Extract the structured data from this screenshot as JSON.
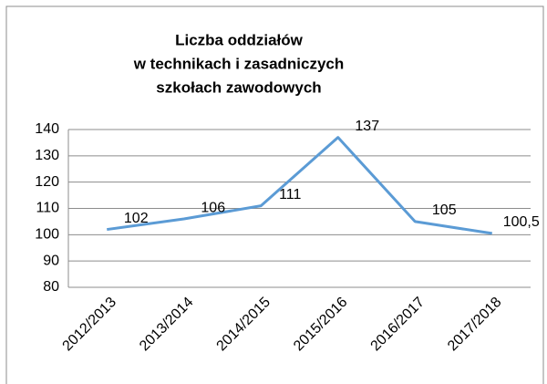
{
  "chart_data": {
    "type": "line",
    "title": [
      "Liczba oddziałów",
      "w technikach i zasadniczych",
      "szkołach zawodowych"
    ],
    "categories": [
      "2012/2013",
      "2013/2014",
      "2014/2015",
      "2015/2016",
      "2016/2017",
      "2017/2018"
    ],
    "values": [
      102,
      106,
      111,
      137,
      105,
      100.5
    ],
    "value_labels": [
      "102",
      "106",
      "111",
      "137",
      "105",
      "100,5"
    ],
    "color": "#5b9bd5",
    "ylim": [
      80,
      140
    ],
    "yticks": [
      80,
      90,
      100,
      110,
      120,
      130,
      140
    ],
    "grid": true
  }
}
